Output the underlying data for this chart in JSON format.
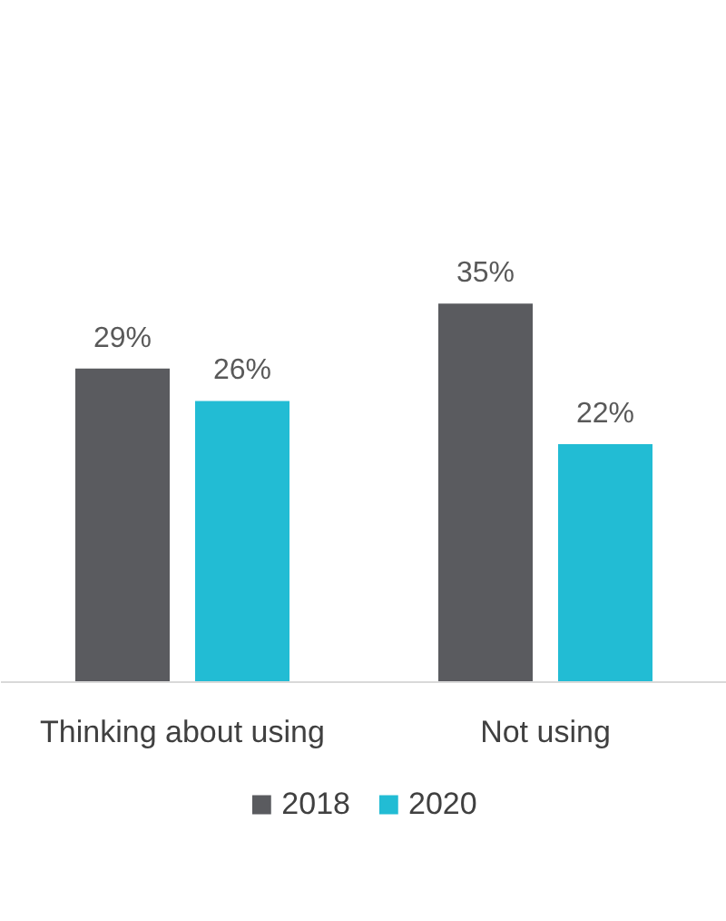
{
  "chart_data": {
    "type": "bar",
    "categories": [
      "Thinking about using",
      "Not using"
    ],
    "legend": "bottom",
    "grid": false,
    "series": [
      {
        "name": "2018",
        "color": "#5a5b5f",
        "values": [
          29,
          35
        ],
        "value_labels": [
          "29%",
          "35%"
        ]
      },
      {
        "name": "2020",
        "color": "#22bcd4",
        "values": [
          26,
          22
        ],
        "value_labels": [
          "26%",
          "22%"
        ]
      }
    ]
  }
}
